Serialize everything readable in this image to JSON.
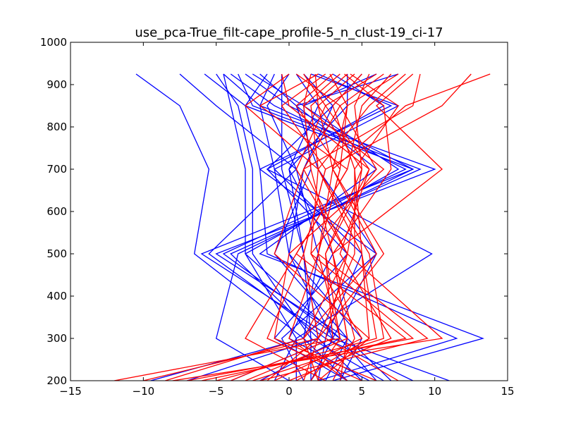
{
  "chart_data": {
    "type": "line",
    "title": "use_pca-True_filt-cape_profile-5_n_clust-19_ci-17",
    "xlabel": "",
    "ylabel": "",
    "xlim": [
      -15,
      15
    ],
    "ylim": [
      200,
      1000
    ],
    "xticks": [
      "−15",
      "−10",
      "−5",
      "0",
      "5",
      "10",
      "15"
    ],
    "yticks": [
      "200",
      "300",
      "400",
      "500",
      "600",
      "700",
      "800",
      "900",
      "1000"
    ],
    "y_levels": [
      925,
      850,
      700,
      500,
      300,
      200
    ],
    "grid": false,
    "legend": "none",
    "colors": {
      "blue_group": "#0000ff",
      "red_group": "#ff0000"
    },
    "series": [
      {
        "color": "blue",
        "values": [
          -10.5,
          -7.5,
          -5.5,
          -6.5,
          1.0,
          4.0
        ]
      },
      {
        "color": "blue",
        "values": [
          -7.5,
          -5.0,
          0.5,
          -5.5,
          2.5,
          8.5
        ]
      },
      {
        "color": "blue",
        "values": [
          -5.8,
          -3.0,
          8.5,
          -6.0,
          3.0,
          11.0
        ]
      },
      {
        "color": "blue",
        "values": [
          -4.5,
          -2.0,
          10.0,
          -5.0,
          4.0,
          7.0
        ]
      },
      {
        "color": "blue",
        "values": [
          -4.0,
          -1.0,
          8.0,
          -4.5,
          3.5,
          6.0
        ]
      },
      {
        "color": "blue",
        "values": [
          -3.5,
          -2.5,
          9.0,
          -4.0,
          2.0,
          5.0
        ]
      },
      {
        "color": "blue",
        "values": [
          -3.0,
          0.0,
          8.5,
          -3.5,
          -5.0,
          0.0
        ]
      },
      {
        "color": "blue",
        "values": [
          -2.5,
          1.0,
          7.5,
          -3.0,
          3.5,
          -2.0
        ]
      },
      {
        "color": "blue",
        "values": [
          -2.0,
          0.5,
          6.0,
          -2.0,
          13.3,
          3.0
        ]
      },
      {
        "color": "blue",
        "values": [
          -1.5,
          -3.0,
          -2.0,
          -1.5,
          11.5,
          2.0
        ]
      },
      {
        "color": "blue",
        "values": [
          -1.0,
          -2.0,
          -1.0,
          0.0,
          3.0,
          -4.0
        ]
      },
      {
        "color": "blue",
        "values": [
          -0.5,
          -0.5,
          -0.5,
          1.0,
          2.0,
          -7.0
        ]
      },
      {
        "color": "blue",
        "values": [
          0.0,
          -1.5,
          0.5,
          2.0,
          1.0,
          -9.5
        ]
      },
      {
        "color": "blue",
        "values": [
          0.5,
          2.0,
          0.0,
          3.0,
          0.0,
          5.5
        ]
      },
      {
        "color": "blue",
        "values": [
          1.0,
          3.0,
          -1.5,
          4.0,
          -1.0,
          4.0
        ]
      },
      {
        "color": "blue",
        "values": [
          1.5,
          7.5,
          -1.0,
          5.0,
          2.5,
          2.0
        ]
      },
      {
        "color": "blue",
        "values": [
          2.0,
          7.0,
          -2.0,
          6.0,
          -0.5,
          1.0
        ]
      },
      {
        "color": "blue",
        "values": [
          3.0,
          6.5,
          -1.5,
          9.8,
          0.5,
          -1.0
        ]
      },
      {
        "color": "blue",
        "values": [
          4.0,
          4.0,
          0.0,
          1.0,
          1.5,
          6.5
        ]
      },
      {
        "color": "blue",
        "values": [
          5.0,
          3.0,
          1.0,
          0.0,
          5.0,
          3.5
        ]
      },
      {
        "color": "blue",
        "values": [
          6.0,
          1.0,
          1.5,
          -1.0,
          4.0,
          2.5
        ]
      },
      {
        "color": "blue",
        "values": [
          7.5,
          0.5,
          2.0,
          6.0,
          3.0,
          1.5
        ]
      },
      {
        "color": "blue",
        "values": [
          -4.5,
          -4.0,
          -3.0,
          -3.0,
          0.5,
          0.5
        ]
      },
      {
        "color": "blue",
        "values": [
          -5.0,
          -3.5,
          -2.5,
          -2.5,
          1.5,
          1.5
        ]
      },
      {
        "color": "red",
        "values": [
          13.8,
          8.0,
          3.0,
          2.0,
          3.5,
          -12.0
        ]
      },
      {
        "color": "red",
        "values": [
          12.5,
          10.5,
          2.5,
          1.0,
          2.0,
          -10.0
        ]
      },
      {
        "color": "red",
        "values": [
          9.0,
          8.5,
          1.0,
          4.0,
          10.5,
          -8.0
        ]
      },
      {
        "color": "red",
        "values": [
          8.5,
          6.0,
          10.5,
          3.0,
          4.0,
          -3.0
        ]
      },
      {
        "color": "red",
        "values": [
          8.0,
          5.5,
          2.0,
          5.0,
          6.0,
          -5.0
        ]
      },
      {
        "color": "red",
        "values": [
          7.5,
          4.0,
          3.5,
          2.0,
          9.5,
          -2.0
        ]
      },
      {
        "color": "red",
        "values": [
          7.0,
          5.0,
          4.0,
          0.5,
          8.0,
          -6.0
        ]
      },
      {
        "color": "red",
        "values": [
          6.5,
          3.5,
          6.0,
          1.5,
          5.0,
          -1.0
        ]
      },
      {
        "color": "red",
        "values": [
          6.0,
          2.5,
          5.5,
          3.5,
          7.0,
          0.0
        ]
      },
      {
        "color": "red",
        "values": [
          5.5,
          4.5,
          5.0,
          2.5,
          3.0,
          -4.0
        ]
      },
      {
        "color": "red",
        "values": [
          5.0,
          3.0,
          4.5,
          4.5,
          2.0,
          1.0
        ]
      },
      {
        "color": "red",
        "values": [
          4.5,
          2.0,
          3.0,
          6.0,
          1.0,
          2.0
        ]
      },
      {
        "color": "red",
        "values": [
          4.0,
          1.5,
          2.0,
          5.5,
          6.5,
          -2.5
        ]
      },
      {
        "color": "red",
        "values": [
          3.5,
          1.0,
          1.5,
          3.0,
          4.5,
          3.0
        ]
      },
      {
        "color": "red",
        "values": [
          3.0,
          0.5,
          3.5,
          2.0,
          0.0,
          4.0
        ]
      },
      {
        "color": "red",
        "values": [
          2.5,
          -0.5,
          2.5,
          1.0,
          -1.5,
          5.0
        ]
      },
      {
        "color": "red",
        "values": [
          2.0,
          -2.0,
          4.0,
          0.5,
          -3.0,
          2.5
        ]
      },
      {
        "color": "red",
        "values": [
          1.5,
          1.0,
          6.5,
          0.0,
          -1.0,
          6.0
        ]
      },
      {
        "color": "red",
        "values": [
          1.0,
          2.5,
          0.5,
          4.0,
          2.5,
          7.5
        ]
      },
      {
        "color": "red",
        "values": [
          0.5,
          3.5,
          1.0,
          -1.0,
          5.5,
          0.5
        ]
      },
      {
        "color": "red",
        "values": [
          0.0,
          -3.0,
          2.0,
          1.5,
          8.5,
          -7.0
        ]
      },
      {
        "color": "red",
        "values": [
          -0.5,
          0.0,
          5.5,
          2.5,
          3.5,
          1.5
        ]
      },
      {
        "color": "red",
        "values": [
          3.8,
          6.5,
          7.0,
          3.0,
          4.0,
          3.5
        ]
      },
      {
        "color": "red",
        "values": [
          4.2,
          7.5,
          4.5,
          5.0,
          5.5,
          2.0
        ]
      },
      {
        "color": "red",
        "values": [
          2.8,
          4.0,
          3.0,
          6.5,
          2.0,
          -1.5
        ]
      },
      {
        "color": "red",
        "values": [
          1.8,
          2.0,
          5.0,
          4.0,
          1.0,
          -8.5
        ]
      }
    ]
  }
}
